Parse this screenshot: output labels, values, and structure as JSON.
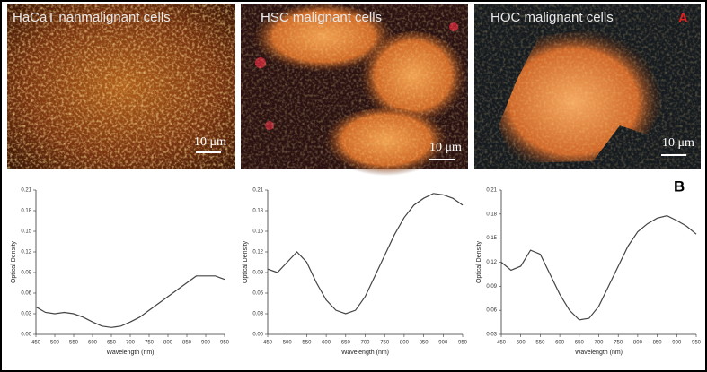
{
  "panels": [
    {
      "label": "HaCaT nanmalignant cells",
      "scale_bar": "10 μm"
    },
    {
      "label": "HSC malignant cells",
      "scale_bar": "10 μm"
    },
    {
      "label": "HOC malignant cells",
      "scale_bar": "10 μm"
    }
  ],
  "panel_letters": [
    "A",
    "B"
  ],
  "chart_data": [
    {
      "type": "line",
      "x_label": "Wavelength (nm)",
      "y_label": "Optical Density",
      "color": "#444444",
      "x": [
        450,
        475,
        500,
        525,
        550,
        575,
        600,
        625,
        650,
        675,
        700,
        725,
        750,
        775,
        800,
        825,
        850,
        875,
        900,
        925,
        950
      ],
      "values": [
        0.04,
        0.032,
        0.03,
        0.032,
        0.03,
        0.025,
        0.018,
        0.012,
        0.01,
        0.012,
        0.018,
        0.025,
        0.035,
        0.045,
        0.055,
        0.065,
        0.075,
        0.085,
        0.085,
        0.085,
        0.08
      ],
      "xlim": [
        450,
        950
      ],
      "xticks": [
        450,
        500,
        550,
        600,
        650,
        700,
        750,
        800,
        850,
        900,
        950
      ],
      "ylim": [
        0,
        0.21
      ],
      "yticks": [
        {
          "value": 0,
          "label": "0.00"
        },
        0.03,
        0.06,
        0.09,
        0.12,
        0.15,
        0.18,
        0.21
      ]
    },
    {
      "type": "line",
      "x_label": "Wavelength (nm)",
      "y_label": "Optical Density",
      "color": "#444444",
      "x": [
        450,
        475,
        500,
        525,
        550,
        575,
        600,
        625,
        650,
        675,
        700,
        725,
        750,
        775,
        800,
        825,
        850,
        875,
        900,
        925,
        950
      ],
      "values": [
        0.095,
        0.09,
        0.105,
        0.12,
        0.105,
        0.075,
        0.05,
        0.035,
        0.03,
        0.035,
        0.055,
        0.085,
        0.115,
        0.145,
        0.17,
        0.188,
        0.198,
        0.205,
        0.203,
        0.198,
        0.188
      ],
      "xlim": [
        450,
        950
      ],
      "xticks": [
        450,
        500,
        550,
        600,
        650,
        700,
        750,
        800,
        850,
        900,
        950
      ],
      "ylim": [
        0,
        0.21
      ],
      "yticks": [
        {
          "value": 0,
          "label": "0.00"
        },
        0.03,
        0.06,
        0.09,
        0.12,
        0.15,
        0.18,
        0.21
      ]
    },
    {
      "type": "line",
      "x_label": "Wavelength (nm)",
      "y_label": "Optical Density",
      "color": "#444444",
      "x": [
        450,
        475,
        500,
        525,
        550,
        575,
        600,
        625,
        650,
        675,
        700,
        725,
        750,
        775,
        800,
        825,
        850,
        875,
        900,
        925,
        950
      ],
      "values": [
        0.12,
        0.11,
        0.115,
        0.135,
        0.13,
        0.105,
        0.08,
        0.06,
        0.048,
        0.05,
        0.065,
        0.09,
        0.115,
        0.14,
        0.158,
        0.168,
        0.175,
        0.178,
        0.172,
        0.165,
        0.155
      ],
      "xlim": [
        450,
        950
      ],
      "xticks": [
        450,
        500,
        550,
        600,
        650,
        700,
        750,
        800,
        850,
        900,
        950
      ],
      "ylim": [
        0.03,
        0.21
      ],
      "yticks": [
        0.03,
        0.06,
        0.09,
        0.12,
        0.15,
        0.18,
        0.21
      ]
    }
  ]
}
